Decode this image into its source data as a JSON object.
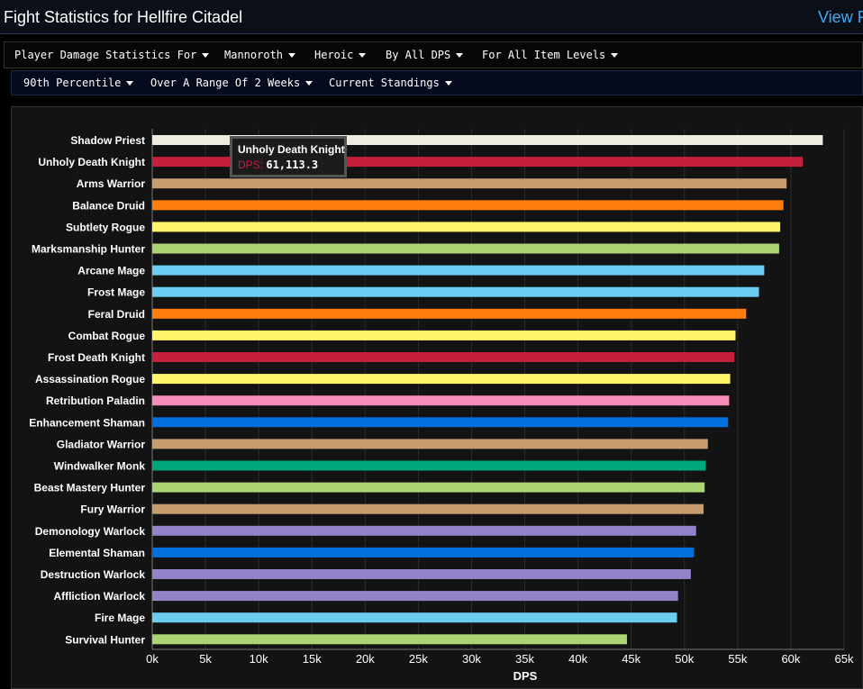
{
  "header": {
    "title": "Fight Statistics for Hellfire Citadel",
    "view_link": "View F"
  },
  "filters_row1": [
    {
      "label": "Player Damage Statistics For"
    },
    {
      "label": "Mannoroth"
    },
    {
      "label": "Heroic"
    },
    {
      "label": "By All DPS"
    },
    {
      "label": "For All Item Levels"
    }
  ],
  "filters_row2": [
    {
      "label": "90th Percentile"
    },
    {
      "label": "Over A Range Of 2 Weeks"
    },
    {
      "label": "Current Standings"
    }
  ],
  "tooltip": {
    "title": "Unholy Death Knight",
    "key": "DPS",
    "value": "61,113.3"
  },
  "chart_data": {
    "type": "bar",
    "orientation": "horizontal",
    "xlabel": "DPS",
    "xlim": [
      0,
      65000
    ],
    "grid": true,
    "legend": "none",
    "tick_values": [
      0,
      5000,
      10000,
      15000,
      20000,
      25000,
      30000,
      35000,
      40000,
      45000,
      50000,
      55000,
      60000,
      65000
    ],
    "tick_labels": [
      "0k",
      "5k",
      "10k",
      "15k",
      "20k",
      "25k",
      "30k",
      "35k",
      "40k",
      "45k",
      "50k",
      "55k",
      "60k",
      "65k"
    ],
    "categories": [
      "Shadow Priest",
      "Unholy Death Knight",
      "Arms Warrior",
      "Balance Druid",
      "Subtlety Rogue",
      "Marksmanship Hunter",
      "Arcane Mage",
      "Frost Mage",
      "Feral Druid",
      "Combat Rogue",
      "Frost Death Knight",
      "Assassination Rogue",
      "Retribution Paladin",
      "Enhancement Shaman",
      "Gladiator Warrior",
      "Windwalker Monk",
      "Beast Mastery Hunter",
      "Fury Warrior",
      "Demonology Warlock",
      "Elemental Shaman",
      "Destruction Warlock",
      "Affliction Warlock",
      "Fire Mage",
      "Survival Hunter"
    ],
    "values": [
      63000,
      61113.3,
      59600,
      59300,
      59000,
      58900,
      57500,
      57000,
      55800,
      54800,
      54700,
      54300,
      54200,
      54100,
      52200,
      52000,
      51900,
      51800,
      51100,
      50900,
      50600,
      49400,
      49300,
      44600
    ],
    "colors": [
      "#F0EBE0",
      "#C41F3B",
      "#C79C6E",
      "#FF7D0A",
      "#FFF569",
      "#ABD473",
      "#69CCF0",
      "#69CCF0",
      "#FF7D0A",
      "#FFF569",
      "#C41F3B",
      "#FFF569",
      "#F58CBA",
      "#0070DE",
      "#C79C6E",
      "#00A67E",
      "#ABD473",
      "#C79C6E",
      "#9482C9",
      "#0070DE",
      "#9482C9",
      "#9482C9",
      "#69CCF0",
      "#ABD473"
    ]
  }
}
